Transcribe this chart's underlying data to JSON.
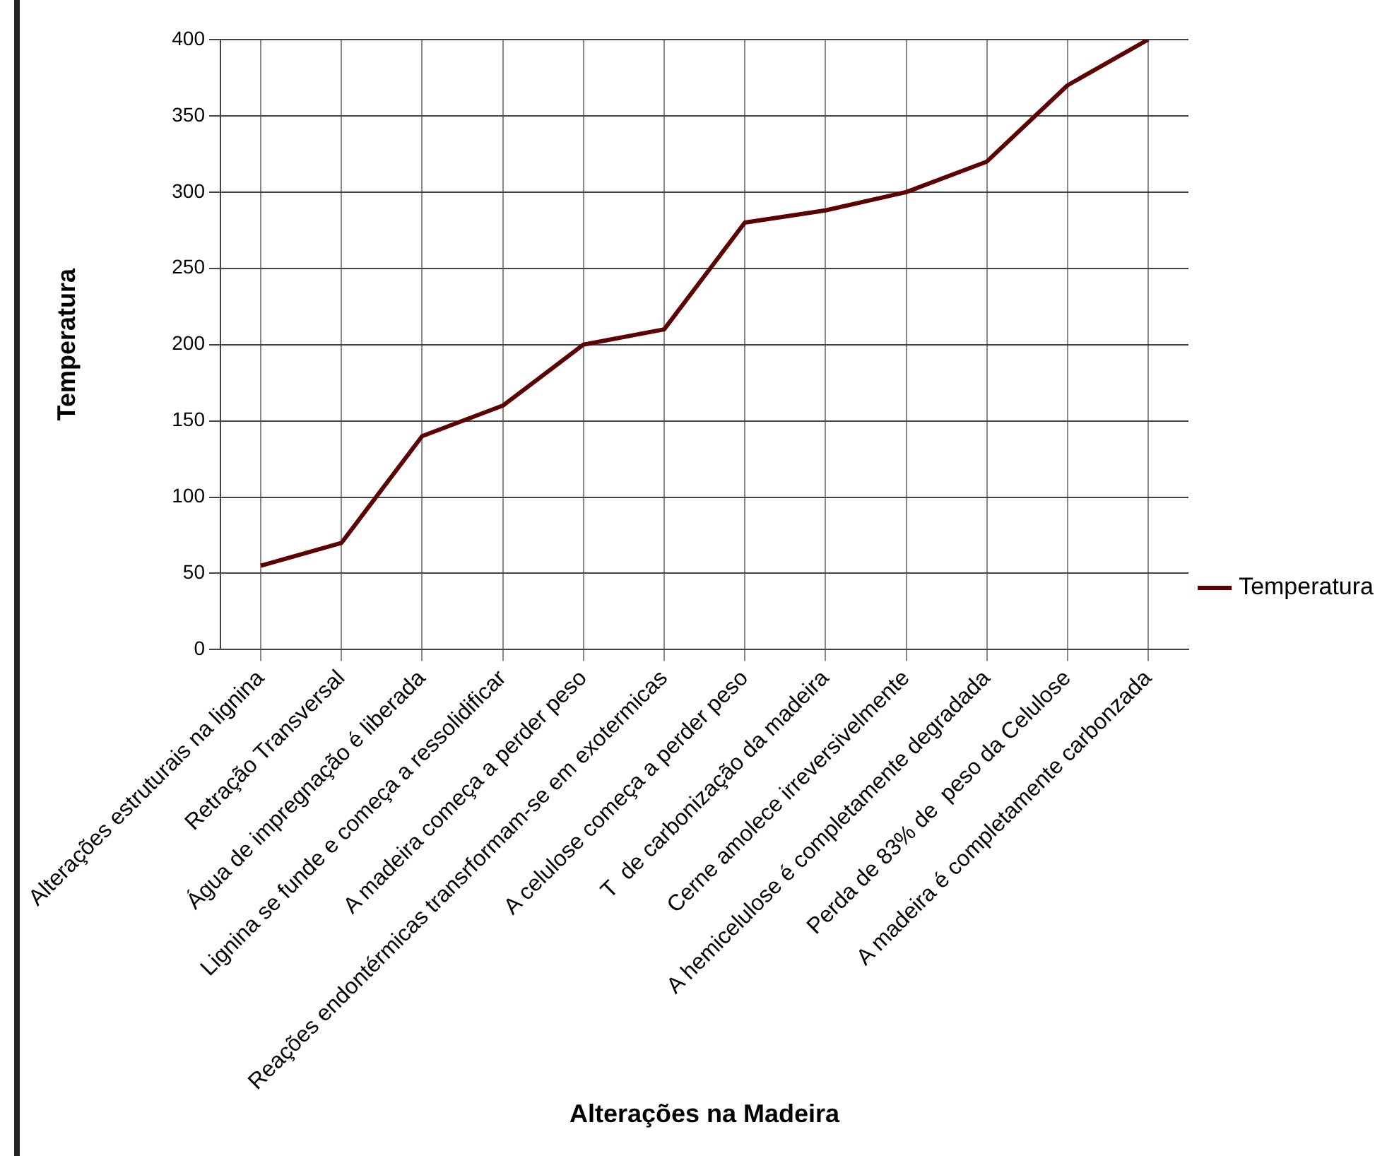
{
  "chart_data": {
    "type": "line",
    "xlabel": "Alterações na Madeira",
    "ylabel": "Temperatura",
    "categories": [
      "Alterações estruturais na lignina",
      "Retração Transversal",
      "Água de impregnação é liberada",
      "Lignina se funde e começa a ressolidificar",
      "A madeira começa a perder peso",
      "Reações endontérmicas transrformam-se em exotermicas",
      "A celulose começa a perder peso",
      "T  de carbonização da madeira",
      "Cerne amolece irreversivelmente",
      "A hemicelulose é completamente degradada",
      "Perda de 83% de  peso da Celulose",
      "A madeira é completamente carbonzada"
    ],
    "series": [
      {
        "name": "Temperatura",
        "color": "#5c0000",
        "values": [
          55,
          70,
          140,
          160,
          200,
          210,
          280,
          288,
          300,
          320,
          370,
          400
        ]
      }
    ],
    "ylim": [
      0,
      400
    ],
    "yticks": [
      0,
      50,
      100,
      150,
      200,
      250,
      300,
      350,
      400
    ],
    "grid": true,
    "legend": "right",
    "marker": "none",
    "line_style": "solid"
  }
}
